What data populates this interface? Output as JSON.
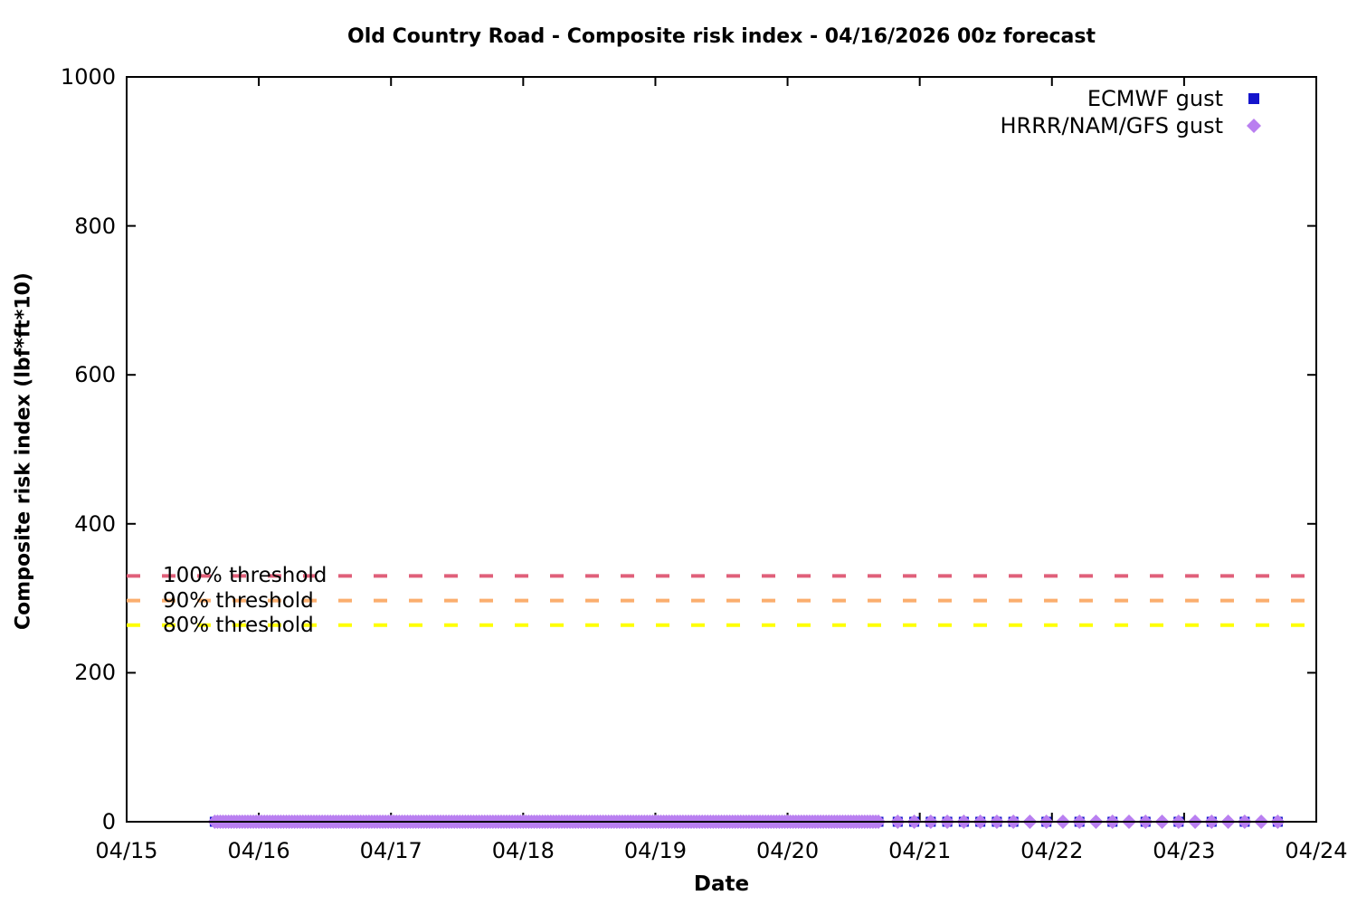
{
  "chart_data": {
    "type": "scatter",
    "title": "Old Country Road - Composite risk index - 04/16/2026 00z forecast",
    "xlabel": "Date",
    "ylabel": "Composite risk index (lbf*ft*10)",
    "x_tick_labels": [
      "04/15",
      "04/16",
      "04/17",
      "04/18",
      "04/19",
      "04/20",
      "04/21",
      "04/22",
      "04/23",
      "04/24"
    ],
    "y_ticks": [
      0,
      200,
      400,
      600,
      800,
      1000
    ],
    "ylim": [
      0,
      1000
    ],
    "x_range_days": [
      0,
      9
    ],
    "grid": false,
    "legend_position": "top-right-inside",
    "background": "#ffffff",
    "border_color": "#000000",
    "thresholds": [
      {
        "label": "100% threshold",
        "value": 330,
        "color": "#e0607a"
      },
      {
        "label": "90% threshold",
        "value": 297,
        "color": "#fbae6e"
      },
      {
        "label": "80% threshold",
        "value": 264,
        "color": "#ffff00"
      }
    ],
    "series": [
      {
        "name": "ECMWF gust",
        "marker": "square",
        "color": "#1414cc",
        "y_value": 0,
        "segments": [
          {
            "start_day": 0.6667,
            "end_day": 5.7083,
            "step_hours": 0.5
          },
          {
            "start_day": 5.8333,
            "end_day": 6.7083,
            "step_hours": 3
          },
          {
            "start_day": 6.9583,
            "end_day": 8.7083,
            "step_hours": 6
          }
        ]
      },
      {
        "name": "HRRR/NAM/GFS gust",
        "marker": "diamond",
        "color": "#b97ff0",
        "y_value": 0,
        "segments": [
          {
            "start_day": 0.6667,
            "end_day": 5.7083,
            "step_hours": 0.5
          },
          {
            "start_day": 5.8333,
            "end_day": 8.7083,
            "step_hours": 3
          }
        ]
      }
    ]
  }
}
